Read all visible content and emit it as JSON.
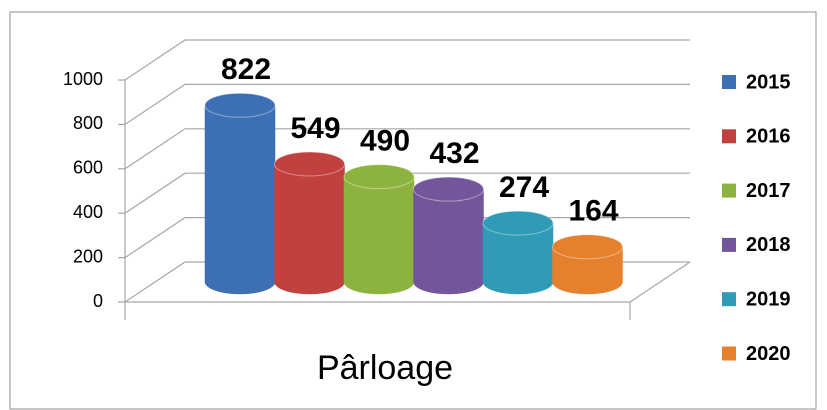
{
  "chart_data": {
    "type": "bar",
    "categories": [
      "Pârloage"
    ],
    "series": [
      {
        "name": "2015",
        "color": "#3d6fb4",
        "values": [
          822
        ]
      },
      {
        "name": "2016",
        "color": "#c1413e",
        "values": [
          549
        ]
      },
      {
        "name": "2017",
        "color": "#8db33f",
        "values": [
          490
        ]
      },
      {
        "name": "2018",
        "color": "#72569b",
        "values": [
          432
        ]
      },
      {
        "name": "2019",
        "color": "#2f9bb6",
        "values": [
          274
        ]
      },
      {
        "name": "2020",
        "color": "#e5802c",
        "values": [
          164
        ]
      }
    ],
    "ylim": [
      0,
      1000
    ],
    "yticks": [
      0,
      200,
      400,
      600,
      800,
      1000
    ],
    "grid": true,
    "legend": "right"
  }
}
